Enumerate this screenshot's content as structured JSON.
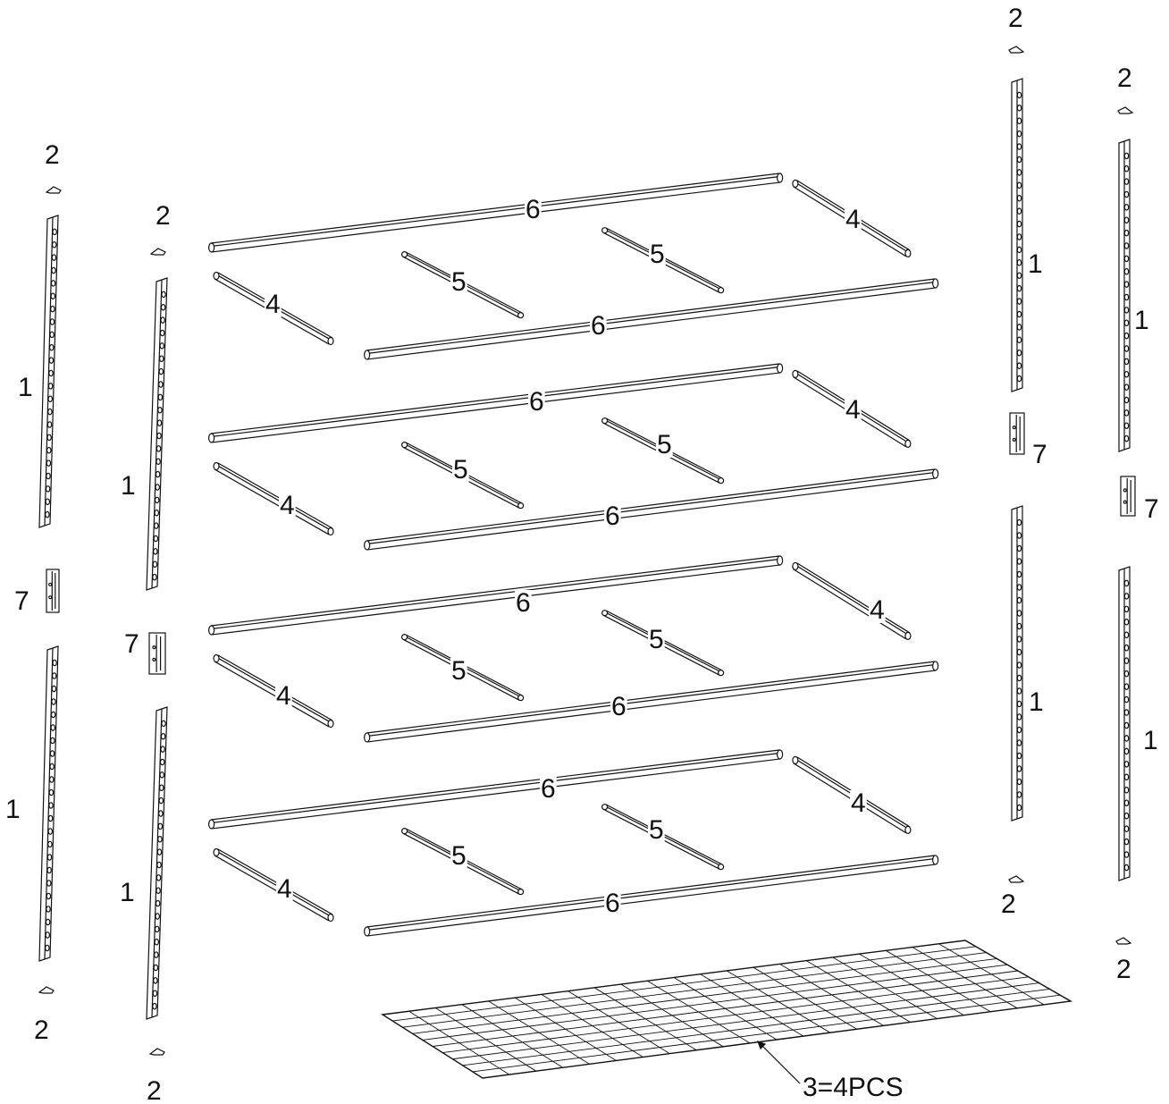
{
  "part_labels": {
    "upright": "1",
    "clip": "2",
    "wire_deck": "3=4PCS",
    "short_beam": "4",
    "support_bar": "5",
    "long_beam": "6",
    "connector": "7"
  },
  "colors": {
    "line": "#111111",
    "background": "#ffffff"
  }
}
